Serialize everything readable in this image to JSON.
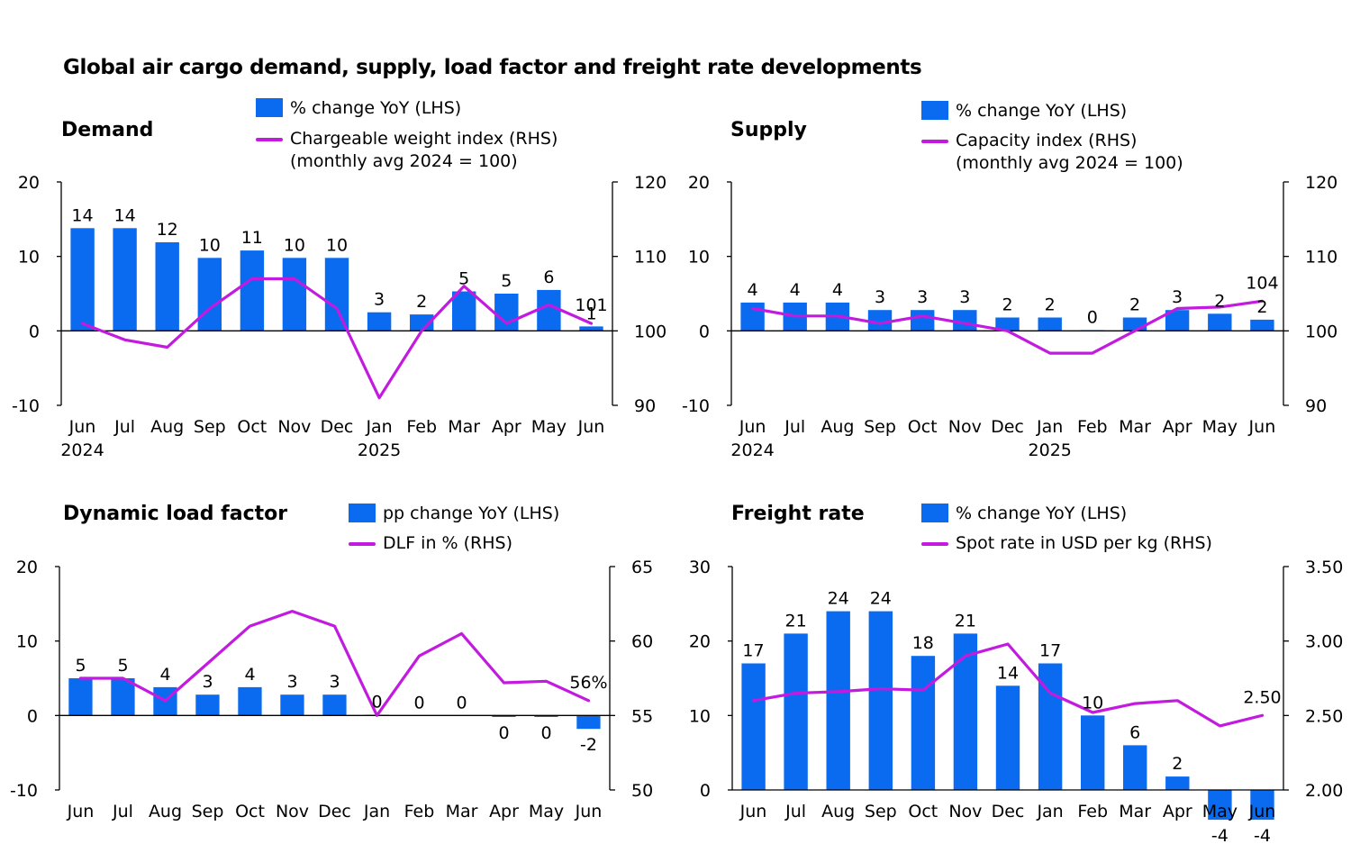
{
  "title": "Global air cargo demand, supply, load factor and freight rate developments",
  "colors": {
    "bar": "#0a6bf0",
    "line": "#c21bdf",
    "axis": "#000000"
  },
  "chart_data": [
    {
      "id": "demand",
      "type": "bar",
      "title": "Demand",
      "legend": {
        "bar": "% change YoY (LHS)",
        "line": "Chargeable weight index (RHS)",
        "line_sub": "(monthly avg 2024 = 100)"
      },
      "categories": [
        "Jun",
        "Jul",
        "Aug",
        "Sep",
        "Oct",
        "Nov",
        "Dec",
        "Jan",
        "Feb",
        "Mar",
        "Apr",
        "May",
        "Jun"
      ],
      "year_labels": [
        {
          "index": 0,
          "text": "2024"
        },
        {
          "index": 7,
          "text": "2025"
        }
      ],
      "series": [
        {
          "axis": "left",
          "kind": "bar",
          "values": [
            13.8,
            13.8,
            11.9,
            9.8,
            10.8,
            9.8,
            9.8,
            2.5,
            2.2,
            5.3,
            5.0,
            5.5,
            0.6
          ],
          "labels": [
            "14",
            "14",
            "12",
            "10",
            "11",
            "10",
            "10",
            "3",
            "2",
            "5",
            "5",
            "6",
            "1"
          ]
        },
        {
          "axis": "right",
          "kind": "line",
          "values": [
            101.0,
            98.8,
            97.8,
            103.0,
            107.0,
            107.0,
            103.0,
            91.0,
            100.0,
            106.0,
            101.0,
            103.5,
            101.0
          ],
          "last_label": "101"
        }
      ],
      "ylim_left": [
        -10,
        20
      ],
      "yticks_left": [
        -10,
        0,
        10,
        20
      ],
      "ylim_right": [
        90,
        120
      ],
      "yticks_right": [
        90,
        100,
        110,
        120
      ]
    },
    {
      "id": "supply",
      "type": "bar",
      "title": "Supply",
      "legend": {
        "bar": "% change YoY (LHS)",
        "line": "Capacity index (RHS)",
        "line_sub": "(monthly avg 2024 = 100)"
      },
      "categories": [
        "Jun",
        "Jul",
        "Aug",
        "Sep",
        "Oct",
        "Nov",
        "Dec",
        "Jan",
        "Feb",
        "Mar",
        "Apr",
        "May",
        "Jun"
      ],
      "year_labels": [
        {
          "index": 0,
          "text": "2024"
        },
        {
          "index": 7,
          "text": "2025"
        }
      ],
      "series": [
        {
          "axis": "left",
          "kind": "bar",
          "values": [
            3.8,
            3.8,
            3.8,
            2.8,
            2.8,
            2.8,
            1.8,
            1.8,
            0.1,
            1.8,
            2.8,
            2.3,
            1.5
          ],
          "labels": [
            "4",
            "4",
            "4",
            "3",
            "3",
            "3",
            "2",
            "2",
            "0",
            "2",
            "3",
            "2",
            "2"
          ]
        },
        {
          "axis": "right",
          "kind": "line",
          "values": [
            103.0,
            102.0,
            102.0,
            101.0,
            102.0,
            101.0,
            100.0,
            97.0,
            97.0,
            100.0,
            103.0,
            103.2,
            104.0
          ],
          "last_label": "104"
        }
      ],
      "ylim_left": [
        -10,
        20
      ],
      "yticks_left": [
        -10,
        0,
        10,
        20
      ],
      "ylim_right": [
        90,
        120
      ],
      "yticks_right": [
        90,
        100,
        110,
        120
      ]
    },
    {
      "id": "dlf",
      "type": "bar",
      "title": "Dynamic load factor",
      "legend": {
        "bar": "pp change YoY (LHS)",
        "line": "DLF in % (RHS)",
        "line_sub": ""
      },
      "categories": [
        "Jun",
        "Jul",
        "Aug",
        "Sep",
        "Oct",
        "Nov",
        "Dec",
        "Jan",
        "Feb",
        "Mar",
        "Apr",
        "May",
        "Jun"
      ],
      "year_labels": [],
      "series": [
        {
          "axis": "left",
          "kind": "bar",
          "values": [
            5.0,
            5.0,
            3.8,
            2.8,
            3.8,
            2.8,
            2.8,
            0.1,
            0.0,
            0.0,
            -0.2,
            -0.2,
            -1.8
          ],
          "labels": [
            "5",
            "5",
            "4",
            "3",
            "4",
            "3",
            "3",
            "0",
            "0",
            "0",
            "0",
            "0",
            "-2"
          ]
        },
        {
          "axis": "right",
          "kind": "line",
          "values": [
            57.5,
            57.5,
            56.0,
            58.5,
            61.0,
            62.0,
            61.0,
            55.0,
            59.0,
            60.5,
            57.2,
            57.3,
            56.0
          ],
          "last_label": "56%"
        }
      ],
      "ylim_left": [
        -10,
        20
      ],
      "yticks_left": [
        -10,
        0,
        10,
        20
      ],
      "ylim_right": [
        50,
        65
      ],
      "yticks_right": [
        50,
        55,
        60,
        65
      ]
    },
    {
      "id": "rate",
      "type": "bar",
      "title": "Freight rate",
      "legend": {
        "bar": "% change YoY (LHS)",
        "line": "Spot rate in USD per kg (RHS)",
        "line_sub": ""
      },
      "categories": [
        "Jun",
        "Jul",
        "Aug",
        "Sep",
        "Oct",
        "Nov",
        "Dec",
        "Jan",
        "Feb",
        "Mar",
        "Apr",
        "May",
        "Jun"
      ],
      "year_labels": [],
      "series": [
        {
          "axis": "left",
          "kind": "bar",
          "values": [
            17.0,
            21.0,
            24.0,
            24.0,
            18.0,
            21.0,
            14.0,
            17.0,
            10.0,
            6.0,
            1.8,
            -4.0,
            -4.0
          ],
          "labels": [
            "17",
            "21",
            "24",
            "24",
            "18",
            "21",
            "14",
            "17",
            "10",
            "6",
            "2",
            "-4",
            "-4"
          ]
        },
        {
          "axis": "right",
          "kind": "line",
          "values": [
            2.6,
            2.65,
            2.66,
            2.68,
            2.67,
            2.9,
            2.98,
            2.65,
            2.52,
            2.58,
            2.6,
            2.43,
            2.5
          ],
          "last_label": "2.50"
        }
      ],
      "ylim_left": [
        0,
        30
      ],
      "yticks_left": [
        0,
        10,
        20,
        30
      ],
      "ylim_right": [
        2.0,
        3.5
      ],
      "yticks_right": [
        "2.00",
        "2.50",
        "3.00",
        "3.50"
      ]
    }
  ]
}
